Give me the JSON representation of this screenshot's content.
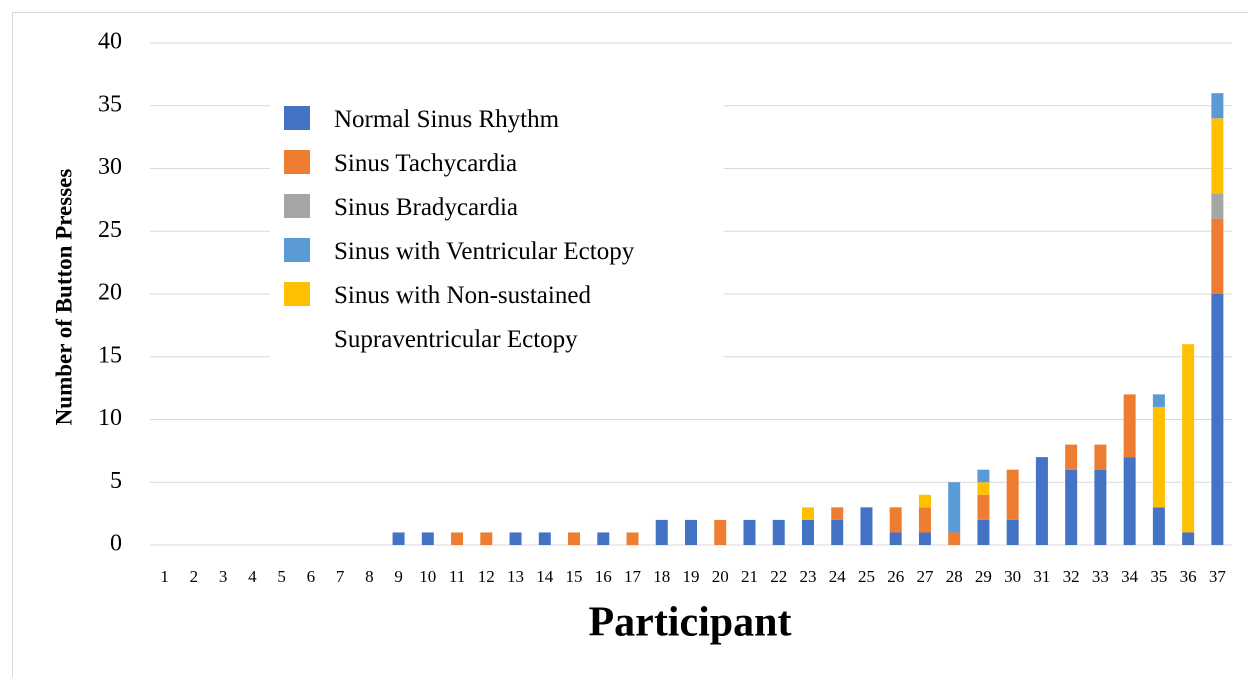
{
  "chart_data": {
    "type": "stacked_bar",
    "x_label": "Participant",
    "y_label": "Number of Button Presses",
    "categories": [
      "1",
      "2",
      "3",
      "4",
      "5",
      "6",
      "7",
      "8",
      "9",
      "10",
      "11",
      "12",
      "13",
      "14",
      "15",
      "16",
      "17",
      "18",
      "19",
      "20",
      "21",
      "22",
      "23",
      "24",
      "25",
      "26",
      "27",
      "28",
      "29",
      "30",
      "31",
      "32",
      "33",
      "34",
      "35",
      "36",
      "37"
    ],
    "series": [
      {
        "name": "Normal Sinus Rhythm",
        "color": "#4472c4",
        "values": [
          0,
          0,
          0,
          0,
          0,
          0,
          0,
          0,
          1,
          1,
          0,
          0,
          1,
          1,
          0,
          1,
          0,
          2,
          2,
          0,
          2,
          2,
          2,
          2,
          3,
          1,
          1,
          0,
          2,
          2,
          7,
          6,
          6,
          7,
          3,
          1,
          20
        ]
      },
      {
        "name": "Sinus Tachycardia",
        "color": "#ed7d31",
        "values": [
          0,
          0,
          0,
          0,
          0,
          0,
          0,
          0,
          0,
          0,
          1,
          1,
          0,
          0,
          1,
          0,
          1,
          0,
          0,
          2,
          0,
          0,
          0,
          1,
          0,
          2,
          2,
          1,
          2,
          4,
          0,
          2,
          2,
          5,
          0,
          0,
          6
        ]
      },
      {
        "name": "Sinus Bradycardia",
        "color": "#a5a5a5",
        "values": [
          0,
          0,
          0,
          0,
          0,
          0,
          0,
          0,
          0,
          0,
          0,
          0,
          0,
          0,
          0,
          0,
          0,
          0,
          0,
          0,
          0,
          0,
          0,
          0,
          0,
          0,
          0,
          0,
          0,
          0,
          0,
          0,
          0,
          0,
          0,
          0,
          2
        ]
      },
      {
        "name": "Sinus with Ventricular Ectopy",
        "color": "#5b9bd5",
        "values": [
          0,
          0,
          0,
          0,
          0,
          0,
          0,
          0,
          0,
          0,
          0,
          0,
          0,
          0,
          0,
          0,
          0,
          0,
          0,
          0,
          0,
          0,
          0,
          0,
          0,
          0,
          0,
          4,
          1,
          0,
          0,
          0,
          0,
          0,
          1,
          0,
          2
        ]
      },
      {
        "name": "Sinus with Non-sustained Supraventricular Ectopy",
        "color": "#ffc000",
        "values": [
          0,
          0,
          0,
          0,
          0,
          0,
          0,
          0,
          0,
          0,
          0,
          0,
          0,
          0,
          0,
          0,
          0,
          0,
          0,
          0,
          0,
          0,
          1,
          0,
          0,
          0,
          1,
          0,
          1,
          0,
          0,
          0,
          0,
          0,
          8,
          15,
          6
        ]
      }
    ],
    "ylim": [
      0,
      40
    ],
    "yticks": [
      0,
      5,
      10,
      15,
      20,
      25,
      30,
      35,
      40
    ],
    "grid": true
  }
}
